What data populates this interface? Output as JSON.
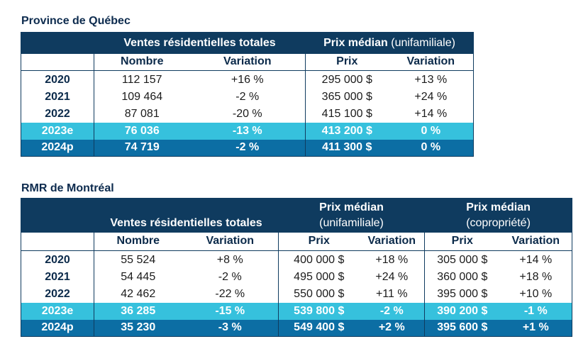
{
  "quebec": {
    "title": "Province de Québec",
    "group_sales": "Ventes résidentielles totales",
    "group_price": "Prix médian",
    "group_price_note": "(unifamiliale)",
    "cols": [
      "Nombre",
      "Variation",
      "Prix",
      "Variation"
    ],
    "rows": [
      {
        "year": "2020",
        "count": "112 157",
        "count_var": "+16 %",
        "price": "295 000 $",
        "price_var": "+13 %"
      },
      {
        "year": "2021",
        "count": "109 464",
        "count_var": "-2 %",
        "price": "365 000 $",
        "price_var": "+24 %"
      },
      {
        "year": "2022",
        "count": "87 081",
        "count_var": "-20 %",
        "price": "415 100 $",
        "price_var": "+14 %"
      },
      {
        "year": "2023e",
        "count": "76 036",
        "count_var": "-13 %",
        "price": "413 200 $",
        "price_var": "0 %"
      },
      {
        "year": "2024p",
        "count": "74 719",
        "count_var": "-2 %",
        "price": "411 300 $",
        "price_var": "0 %"
      }
    ]
  },
  "montreal": {
    "title": "RMR de Montréal",
    "group_sales": "Ventes résidentielles totales",
    "group_price1": "Prix médian",
    "group_price1_note": "(unifamiliale)",
    "group_price2": "Prix médian",
    "group_price2_note": "(copropriété)",
    "cols": [
      "Nombre",
      "Variation",
      "Prix",
      "Variation",
      "Prix",
      "Variation"
    ],
    "rows": [
      {
        "year": "2020",
        "count": "55 524",
        "count_var": "+8 %",
        "price1": "400 000 $",
        "price1_var": "+18 %",
        "price2": "305 000 $",
        "price2_var": "+14 %"
      },
      {
        "year": "2021",
        "count": "54 445",
        "count_var": "-2 %",
        "price1": "495 000 $",
        "price1_var": "+24 %",
        "price2": "360 000 $",
        "price2_var": "+18 %"
      },
      {
        "year": "2022",
        "count": "42 462",
        "count_var": "-22 %",
        "price1": "550 000 $",
        "price1_var": "+11 %",
        "price2": "395 000 $",
        "price2_var": "+10 %"
      },
      {
        "year": "2023e",
        "count": "36 285",
        "count_var": "-15 %",
        "price1": "539 800 $",
        "price1_var": "-2 %",
        "price2": "390 200 $",
        "price2_var": "-1 %"
      },
      {
        "year": "2024p",
        "count": "35 230",
        "count_var": "-3 %",
        "price1": "549 400 $",
        "price1_var": "+2 %",
        "price2": "395 600 $",
        "price2_var": "+1 %"
      }
    ]
  }
}
